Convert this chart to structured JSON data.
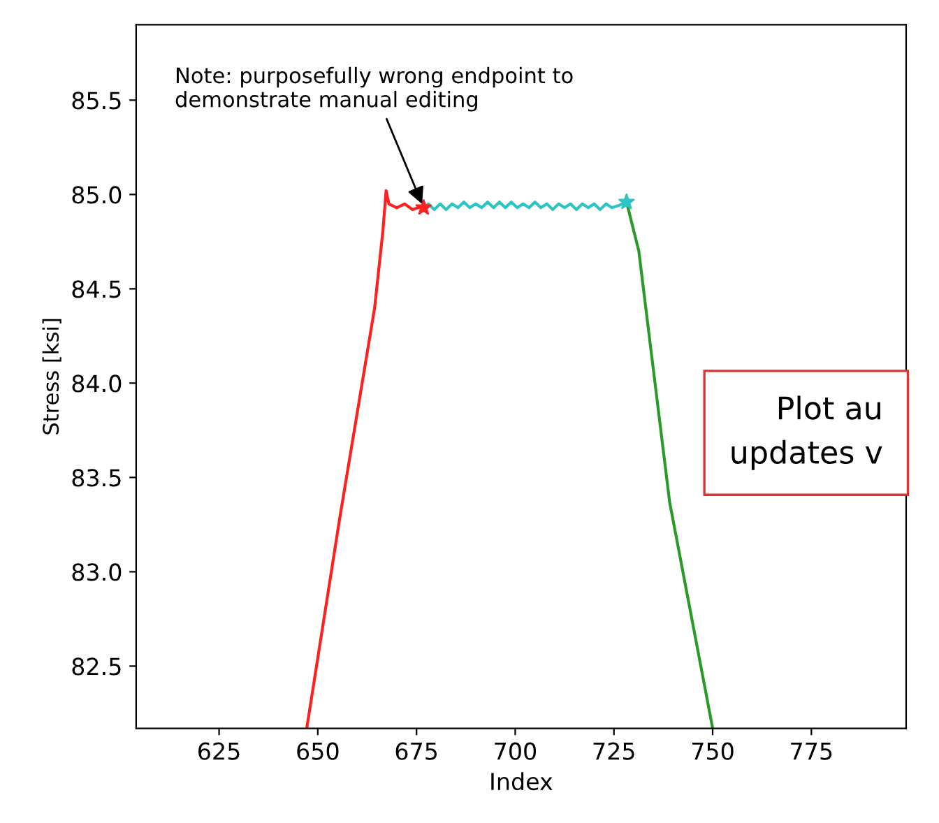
{
  "chart_data": {
    "type": "line",
    "xlabel": "Index",
    "ylabel": "Stress [ksi]",
    "xlim": [
      604,
      799
    ],
    "ylim": [
      82.17,
      85.9
    ],
    "xticks": [
      625,
      650,
      675,
      700,
      725,
      750,
      775
    ],
    "yticks": [
      {
        "value": 82.5,
        "label": "82.5"
      },
      {
        "value": 83.0,
        "label": "83.0"
      },
      {
        "value": 83.5,
        "label": "83.5"
      },
      {
        "value": 84.0,
        "label": "84.0"
      },
      {
        "value": 84.5,
        "label": "84.5"
      },
      {
        "value": 85.0,
        "label": "85.0"
      },
      {
        "value": 85.5,
        "label": "85.5"
      }
    ],
    "grid": false,
    "legend": false,
    "marker": "none",
    "line_style": "solid",
    "series": [
      {
        "color": "#ff2020",
        "x": [
          647.2,
          655.6,
          664.4,
          666.5,
          667.3,
          668,
          670,
          672,
          674,
          676.8
        ],
        "values": [
          82.17,
          83.29,
          84.4,
          84.81,
          85.02,
          84.95,
          84.93,
          84.95,
          84.92,
          84.94
        ]
      },
      {
        "color": "#2ec4c4",
        "x": [
          676.8,
          678,
          679.5,
          681,
          682.5,
          684,
          685.5,
          687,
          688.5,
          690,
          691.5,
          693,
          694.5,
          696,
          697.5,
          699,
          700.5,
          702,
          703.5,
          705,
          706.5,
          708,
          709.5,
          711,
          712.5,
          714,
          715.5,
          717,
          718.5,
          720,
          721.5,
          723,
          724.5,
          726,
          728.2
        ],
        "values": [
          84.93,
          84.95,
          84.92,
          84.95,
          84.92,
          84.95,
          84.93,
          84.96,
          84.93,
          84.95,
          84.93,
          84.96,
          84.93,
          84.96,
          84.93,
          84.96,
          84.93,
          84.95,
          84.93,
          84.96,
          84.93,
          84.95,
          84.92,
          84.95,
          84.93,
          84.95,
          84.92,
          84.95,
          84.93,
          84.95,
          84.92,
          84.95,
          84.93,
          84.94,
          84.96
        ]
      },
      {
        "color": "#2a9a2a",
        "x": [
          728.2,
          731.3,
          739.1,
          750.0
        ],
        "values": [
          84.96,
          84.7,
          83.37,
          82.17
        ]
      },
      {
        "type": "scatter",
        "marker": "star",
        "color": "#ff2020",
        "x": [
          676.8
        ],
        "values": [
          84.93
        ]
      },
      {
        "type": "scatter",
        "marker": "star",
        "color": "#2ec4c4",
        "x": [
          728.2
        ],
        "values": [
          84.96
        ]
      }
    ],
    "annotations": [
      {
        "text": "Note: purposefully wrong endpoint to\ndemonstrate manual editing",
        "x": 676.8,
        "y": 84.93
      },
      "Plot au\nupdates v"
    ]
  }
}
